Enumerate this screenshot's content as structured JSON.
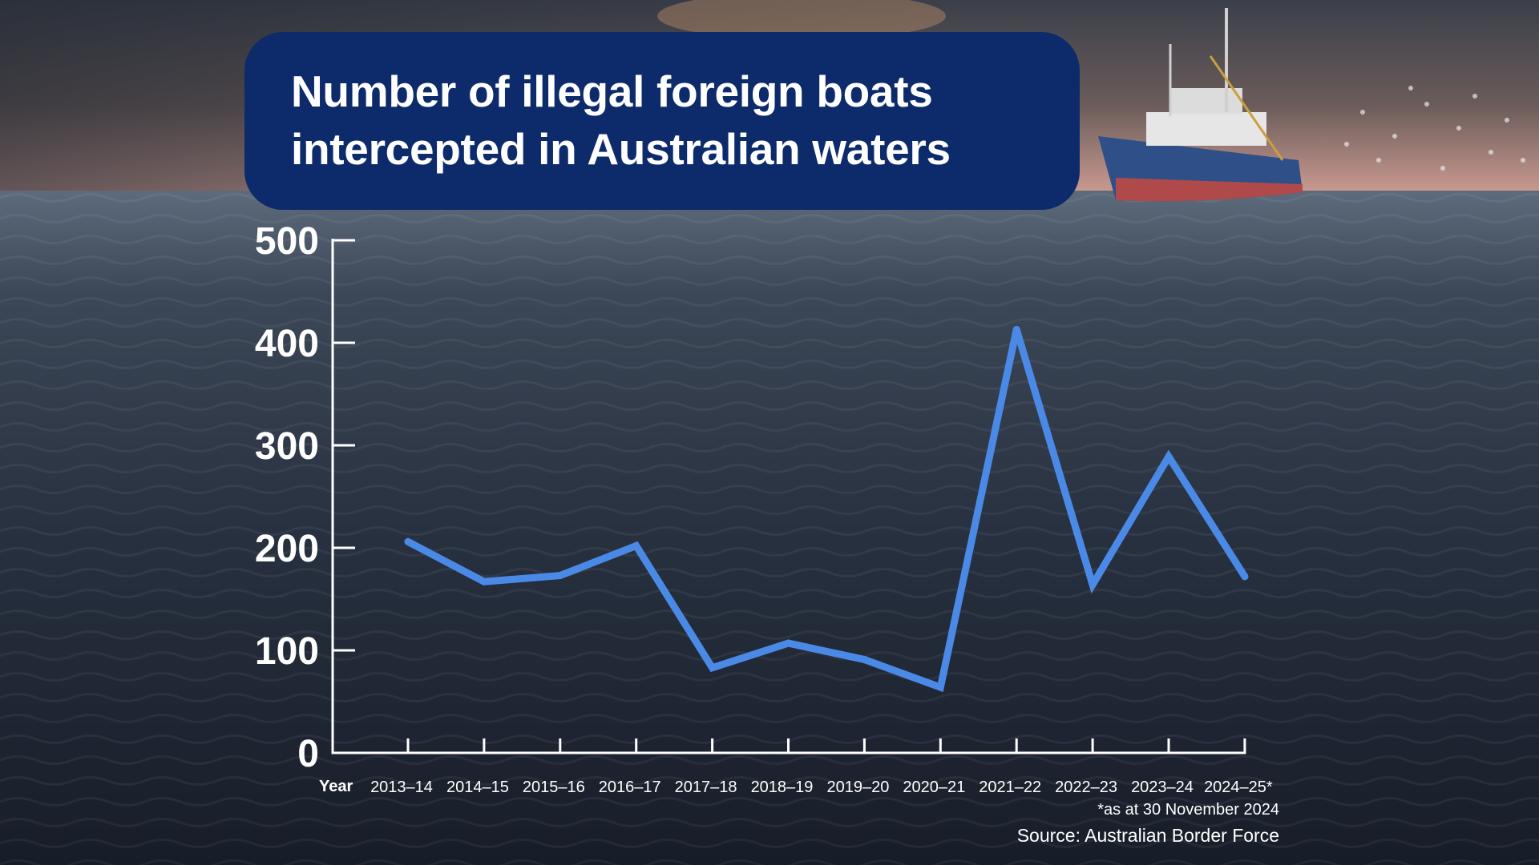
{
  "title": "Number of illegal foreign boats intercepted in Australian waters",
  "footnote": "*as at 30 November 2024",
  "source": "Source: Australian Border Force",
  "colors": {
    "line": "#4a8ae6",
    "title_bg": "#0d2b6b",
    "text": "#ffffff"
  },
  "chart_data": {
    "type": "line",
    "title": "Number of illegal foreign boats intercepted in Australian waters",
    "xlabel": "Year",
    "ylabel": "",
    "categories": [
      "2013–14",
      "2014–15",
      "2015–16",
      "2016–17",
      "2017–18",
      "2018–19",
      "2019–20",
      "2020–21",
      "2021–22",
      "2022–23",
      "2023–24",
      "2024–25*"
    ],
    "series": [
      {
        "values": [
          206,
          167,
          173,
          202,
          83,
          107,
          91,
          64,
          413,
          164,
          289,
          172
        ]
      }
    ],
    "ylim": [
      0,
      500
    ],
    "yticks": [
      "0",
      "100",
      "200",
      "300",
      "400",
      "500"
    ],
    "grid": false,
    "legend": "none"
  }
}
